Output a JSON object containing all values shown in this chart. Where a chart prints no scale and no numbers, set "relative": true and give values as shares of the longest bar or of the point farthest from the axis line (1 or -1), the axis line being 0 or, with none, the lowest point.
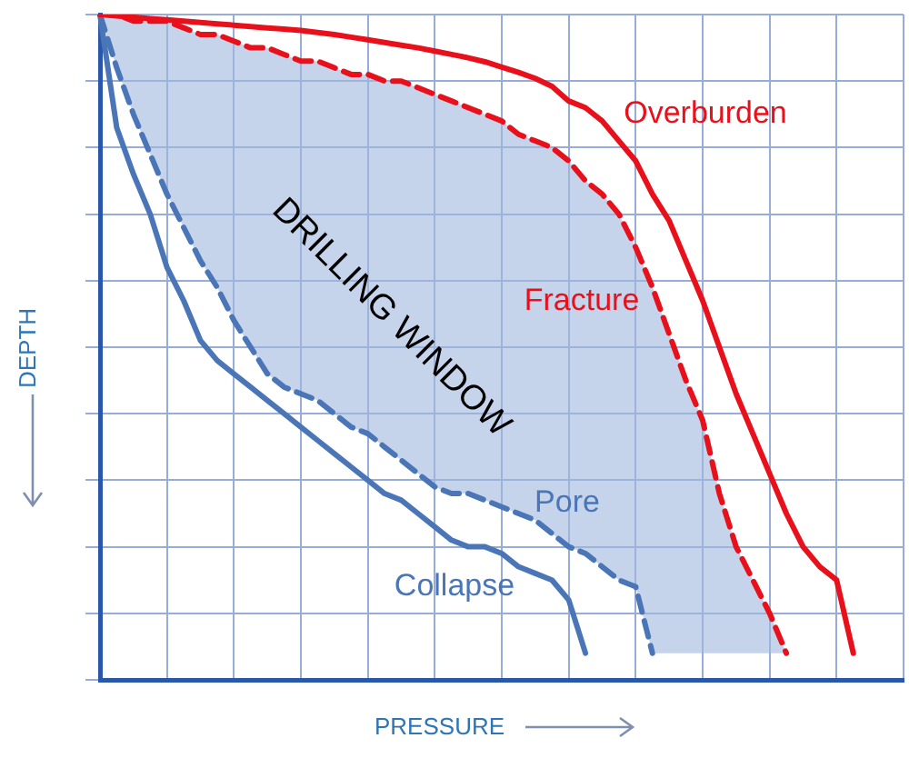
{
  "chart_data": {
    "type": "line",
    "relative": true,
    "xlabel": "PRESSURE",
    "ylabel": "DEPTH",
    "grid": true,
    "legend": false,
    "tick_labels": false,
    "marker": "none",
    "annotations": [
      "DRILLING WINDOW"
    ],
    "categories": [
      null,
      null,
      null,
      null,
      null,
      null,
      null,
      null,
      null,
      null,
      null,
      null,
      null,
      null,
      null,
      null,
      null,
      null,
      null,
      null,
      null,
      null,
      null,
      null,
      null,
      null,
      null,
      null,
      null,
      null,
      null,
      null,
      null,
      null,
      null,
      null,
      null,
      null,
      null,
      null,
      null,
      null,
      null,
      null,
      null,
      null,
      null,
      null,
      null
    ],
    "series": [
      {
        "name": "Overburden",
        "color": "#e8101a",
        "line_style": "solid",
        "values": [
          1.0,
          0.998,
          0.996,
          0.994,
          0.992,
          0.99,
          0.988,
          0.986,
          0.984,
          0.982,
          0.98,
          0.978,
          0.976,
          0.973,
          0.97,
          0.966,
          0.962,
          0.958,
          0.954,
          0.95,
          0.945,
          0.94,
          0.935,
          0.929,
          0.921,
          0.913,
          0.904,
          0.892,
          0.87,
          0.86,
          0.84,
          0.81,
          0.78,
          0.73,
          0.69,
          0.63,
          0.57,
          0.5,
          0.43,
          0.37,
          0.31,
          0.25,
          0.2,
          0.17,
          0.15,
          0.04,
          null,
          null,
          null
        ]
      },
      {
        "name": "Fracture",
        "color": "#e8101a",
        "line_style": "dashed",
        "values": [
          1.0,
          1.0,
          0.99,
          0.99,
          0.99,
          0.98,
          0.97,
          0.97,
          0.96,
          0.95,
          0.95,
          0.94,
          0.93,
          0.93,
          0.92,
          0.91,
          0.91,
          0.9,
          0.9,
          0.89,
          0.88,
          0.87,
          0.86,
          0.85,
          0.84,
          0.82,
          0.81,
          0.8,
          0.78,
          0.75,
          0.73,
          0.7,
          0.65,
          0.59,
          0.52,
          0.45,
          0.39,
          0.28,
          0.2,
          0.15,
          0.1,
          0.04,
          null,
          null,
          null,
          null,
          null,
          null,
          null
        ]
      },
      {
        "name": "Pore",
        "color": "#4a76b8",
        "line_style": "dashed",
        "values": [
          1.0,
          0.92,
          0.85,
          0.79,
          0.73,
          0.68,
          0.63,
          0.59,
          0.54,
          0.5,
          0.46,
          0.44,
          0.43,
          0.42,
          0.4,
          0.38,
          0.37,
          0.35,
          0.33,
          0.31,
          0.29,
          0.28,
          0.28,
          0.27,
          0.26,
          0.25,
          0.24,
          0.22,
          0.2,
          0.19,
          0.17,
          0.15,
          0.14,
          0.04,
          null,
          null,
          null,
          null,
          null,
          null,
          null,
          null,
          null,
          null,
          null,
          null,
          null,
          null,
          null
        ]
      },
      {
        "name": "Collapse",
        "color": "#4a76b8",
        "line_style": "solid",
        "values": [
          1.0,
          0.83,
          0.76,
          0.7,
          0.62,
          0.57,
          0.51,
          0.48,
          0.46,
          0.44,
          0.42,
          0.4,
          0.38,
          0.36,
          0.34,
          0.32,
          0.3,
          0.28,
          0.27,
          0.25,
          0.23,
          0.21,
          0.2,
          0.2,
          0.19,
          0.17,
          0.16,
          0.15,
          0.12,
          0.04,
          null,
          null,
          null,
          null,
          null,
          null,
          null,
          null,
          null,
          null,
          null,
          null,
          null,
          null,
          null,
          null,
          null,
          null,
          null
        ]
      }
    ]
  }
}
